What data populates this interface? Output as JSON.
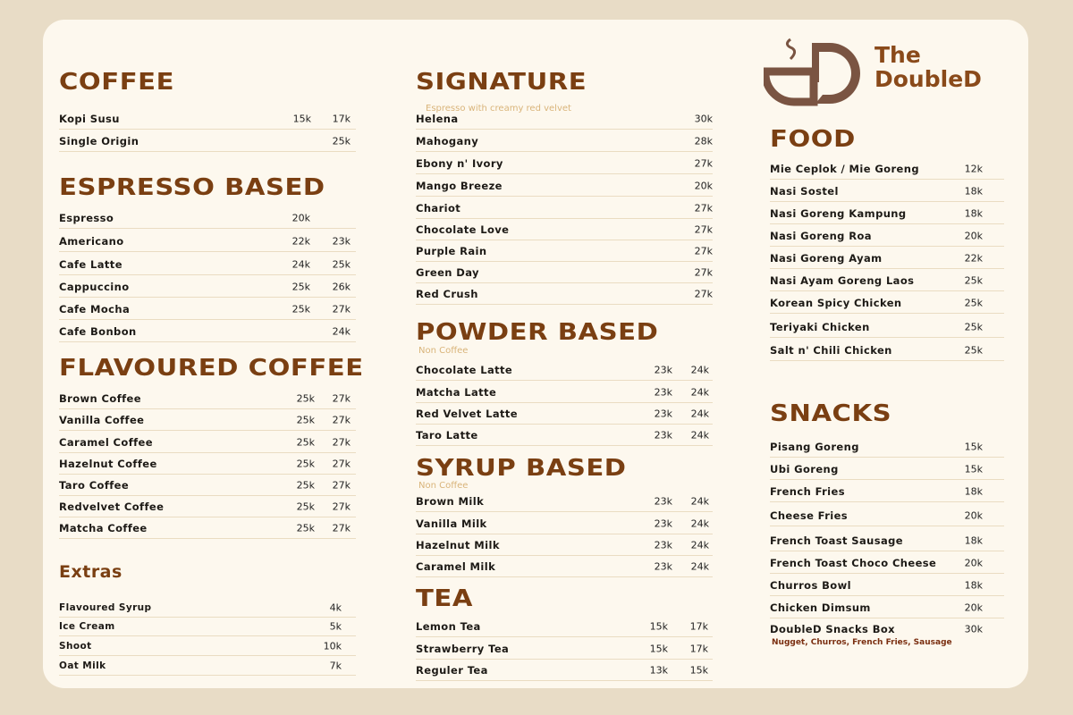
{
  "brand": {
    "name_line1": "The",
    "name_line2": "DoubleD",
    "color": "#8a4a1a",
    "logo_color": "#7a5442"
  },
  "colors": {
    "heading": "#7a3f12",
    "background": "#fdf8ee",
    "page": "#e8dcc6"
  },
  "sections": [
    {
      "id": "coffee",
      "title": "COFFEE",
      "items": [
        {
          "name": "Kopi Susu",
          "prices": [
            "15k",
            "17k"
          ]
        },
        {
          "name": "Single Origin",
          "prices": [
            "",
            "25k"
          ]
        }
      ]
    },
    {
      "id": "espresso",
      "title": "ESPRESSO BASED",
      "items": [
        {
          "name": "Espresso",
          "prices": [
            "20k",
            ""
          ]
        },
        {
          "name": "Americano",
          "prices": [
            "22k",
            "23k"
          ]
        },
        {
          "name": "Cafe Latte",
          "prices": [
            "24k",
            "25k"
          ]
        },
        {
          "name": "Cappuccino",
          "prices": [
            "25k",
            "26k"
          ]
        },
        {
          "name": "Cafe Mocha",
          "prices": [
            "25k",
            "27k"
          ]
        },
        {
          "name": "Cafe Bonbon",
          "prices": [
            "",
            "24k"
          ]
        }
      ]
    },
    {
      "id": "flavoured",
      "title": "FLAVOURED COFFEE",
      "items": [
        {
          "name": "Brown Coffee",
          "prices": [
            "25k",
            "27k"
          ]
        },
        {
          "name": "Vanilla Coffee",
          "prices": [
            "25k",
            "27k"
          ]
        },
        {
          "name": "Caramel Coffee",
          "prices": [
            "25k",
            "27k"
          ]
        },
        {
          "name": "Hazelnut Coffee",
          "prices": [
            "25k",
            "27k"
          ]
        },
        {
          "name": "Taro Coffee",
          "prices": [
            "25k",
            "27k"
          ]
        },
        {
          "name": "Redvelvet Coffee",
          "prices": [
            "25k",
            "27k"
          ]
        },
        {
          "name": "Matcha Coffee",
          "prices": [
            "25k",
            "27k"
          ]
        }
      ]
    },
    {
      "id": "extras",
      "title": "Extras",
      "items": [
        {
          "name": "Flavoured Syrup",
          "prices": [
            "4k"
          ]
        },
        {
          "name": "Ice Cream",
          "prices": [
            "5k"
          ]
        },
        {
          "name": "Shoot",
          "prices": [
            "10k"
          ]
        },
        {
          "name": "Oat Milk",
          "prices": [
            "7k"
          ]
        }
      ]
    },
    {
      "id": "signature",
      "title": "SIGNATURE",
      "subtitle": "Espresso with creamy red velvet",
      "items": [
        {
          "name": "Helena",
          "prices": [
            "30k"
          ]
        },
        {
          "name": "Mahogany",
          "prices": [
            "28k"
          ]
        },
        {
          "name": "Ebony n' Ivory",
          "prices": [
            "27k"
          ]
        },
        {
          "name": "Mango Breeze",
          "prices": [
            "20k"
          ]
        },
        {
          "name": "Chariot",
          "prices": [
            "27k"
          ]
        },
        {
          "name": "Chocolate Love",
          "prices": [
            "27k"
          ]
        },
        {
          "name": "Purple Rain",
          "prices": [
            "27k"
          ]
        },
        {
          "name": "Green Day",
          "prices": [
            "27k"
          ]
        },
        {
          "name": "Red Crush",
          "prices": [
            "27k"
          ]
        }
      ]
    },
    {
      "id": "powder",
      "title": "POWDER BASED",
      "subtitle": "Non Coffee",
      "items": [
        {
          "name": "Chocolate Latte",
          "prices": [
            "23k",
            "24k"
          ]
        },
        {
          "name": "Matcha Latte",
          "prices": [
            "23k",
            "24k"
          ]
        },
        {
          "name": "Red Velvet Latte",
          "prices": [
            "23k",
            "24k"
          ]
        },
        {
          "name": "Taro Latte",
          "prices": [
            "23k",
            "24k"
          ]
        }
      ]
    },
    {
      "id": "syrup",
      "title": "SYRUP BASED",
      "subtitle": "Non Coffee",
      "items": [
        {
          "name": "Brown Milk",
          "prices": [
            "23k",
            "24k"
          ]
        },
        {
          "name": "Vanilla Milk",
          "prices": [
            "23k",
            "24k"
          ]
        },
        {
          "name": "Hazelnut Milk",
          "prices": [
            "23k",
            "24k"
          ]
        },
        {
          "name": "Caramel Milk",
          "prices": [
            "23k",
            "24k"
          ]
        }
      ]
    },
    {
      "id": "tea",
      "title": "TEA",
      "items": [
        {
          "name": "Lemon Tea",
          "prices": [
            "15k",
            "17k"
          ]
        },
        {
          "name": "Strawberry Tea",
          "prices": [
            "15k",
            "17k"
          ]
        },
        {
          "name": "Reguler Tea",
          "prices": [
            "13k",
            "15k"
          ]
        }
      ]
    },
    {
      "id": "food",
      "title": "FOOD",
      "items": [
        {
          "name": "Mie Ceplok / Mie Goreng",
          "prices": [
            "12k"
          ]
        },
        {
          "name": "Nasi Sostel",
          "prices": [
            "18k"
          ]
        },
        {
          "name": "Nasi Goreng Kampung",
          "prices": [
            "18k"
          ]
        },
        {
          "name": "Nasi Goreng Roa",
          "prices": [
            "20k"
          ]
        },
        {
          "name": "Nasi Goreng Ayam",
          "prices": [
            "22k"
          ]
        },
        {
          "name": "Nasi Ayam Goreng Laos",
          "prices": [
            "25k"
          ]
        },
        {
          "name": "Korean Spicy Chicken",
          "prices": [
            "25k"
          ]
        },
        {
          "name": "Teriyaki Chicken",
          "prices": [
            "25k"
          ]
        },
        {
          "name": "Salt n' Chili Chicken",
          "prices": [
            "25k"
          ]
        }
      ]
    },
    {
      "id": "snacks",
      "title": "SNACKS",
      "items": [
        {
          "name": "Pisang Goreng",
          "prices": [
            "15k"
          ]
        },
        {
          "name": "Ubi Goreng",
          "prices": [
            "15k"
          ]
        },
        {
          "name": "French Fries",
          "prices": [
            "18k"
          ]
        },
        {
          "name": "Cheese Fries",
          "prices": [
            "20k"
          ]
        },
        {
          "name": "French Toast Sausage",
          "prices": [
            "18k"
          ]
        },
        {
          "name": "French Toast Choco Cheese",
          "prices": [
            "20k"
          ]
        },
        {
          "name": "Churros Bowl",
          "prices": [
            "18k"
          ]
        },
        {
          "name": "Chicken Dimsum",
          "prices": [
            "20k"
          ]
        },
        {
          "name": "DoubleD Snacks Box",
          "prices": [
            "30k"
          ],
          "note": "Nugget, Churros, French Fries, Sausage"
        }
      ]
    }
  ]
}
